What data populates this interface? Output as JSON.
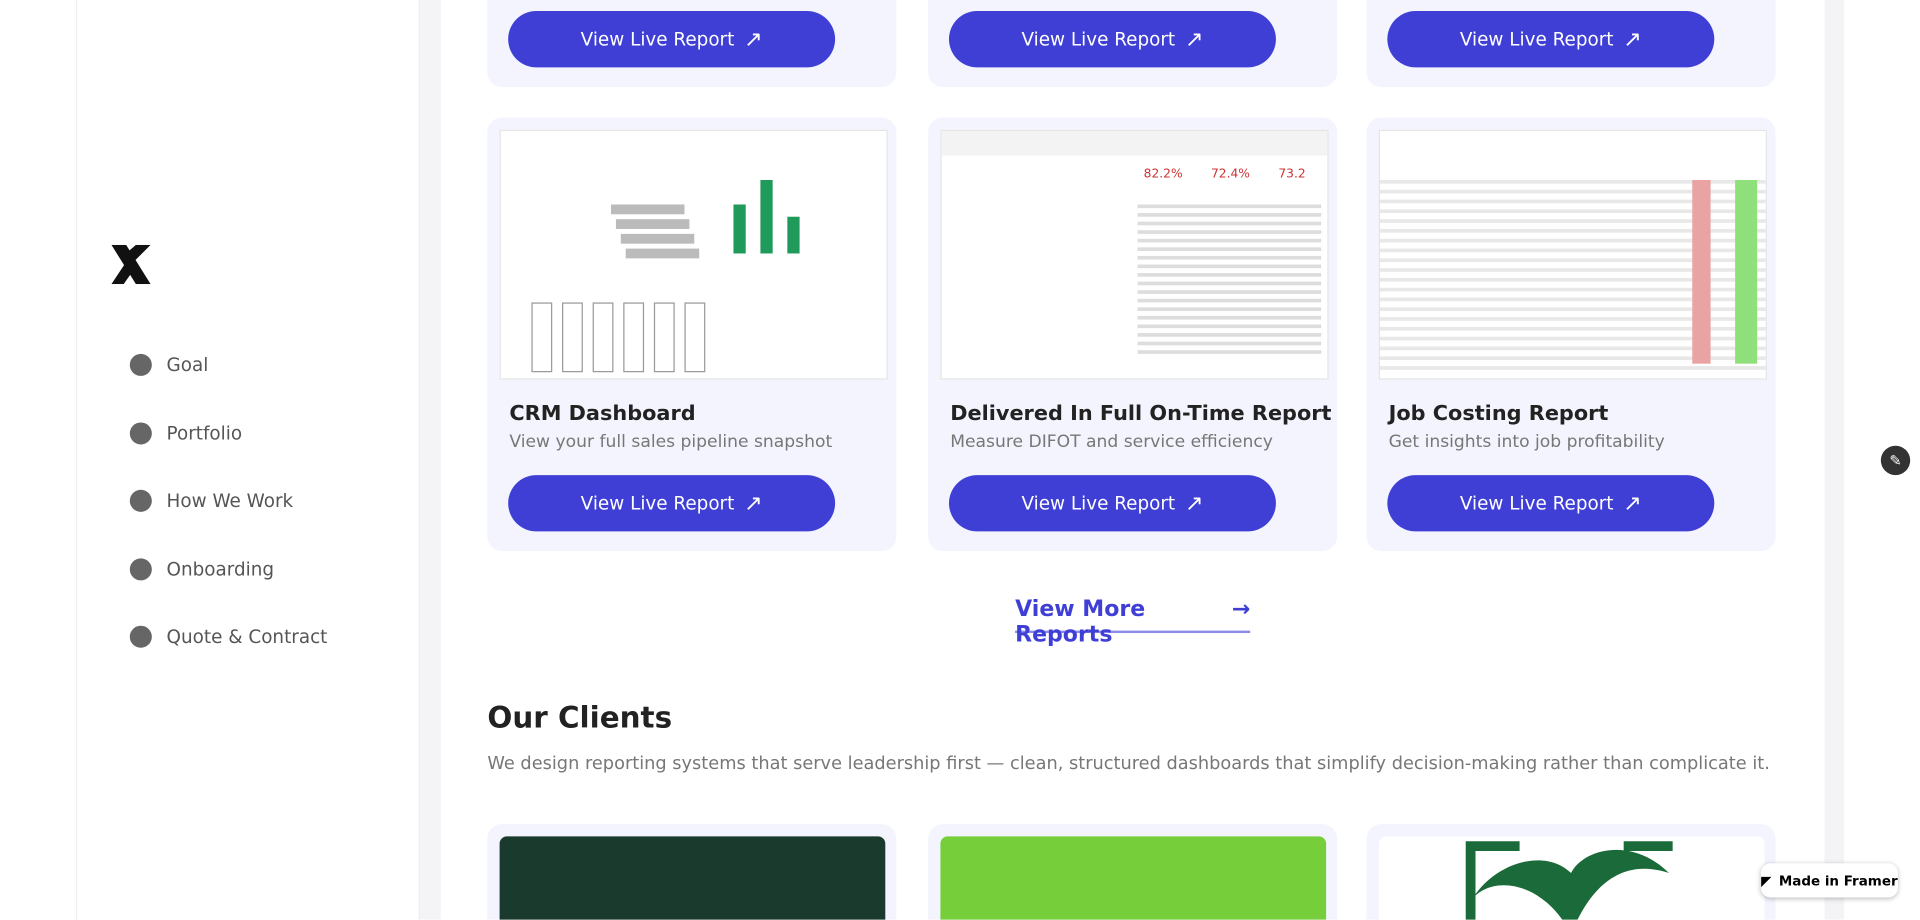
{
  "nav": [
    "Goal",
    "Portfolio",
    "How We Work",
    "Onboarding",
    "Quote & Contract"
  ],
  "report_button": "View Live Report",
  "reports": [
    {
      "title": "CRM Dashboard",
      "description": "View your full sales pipeline snapshot"
    },
    {
      "title": "Delivered In Full On-Time Report",
      "description": "Measure DIFOT and service efficiency"
    },
    {
      "title": "Job Costing Report",
      "description": "Get insights into job profitability"
    }
  ],
  "view_more": "View More Reports",
  "clients": {
    "heading": "Our Clients",
    "text": "We design reporting systems that serve leadership first — clean, structured dashboards that simplify decision-making rather than complicate it."
  },
  "badge": "Made in Framer"
}
